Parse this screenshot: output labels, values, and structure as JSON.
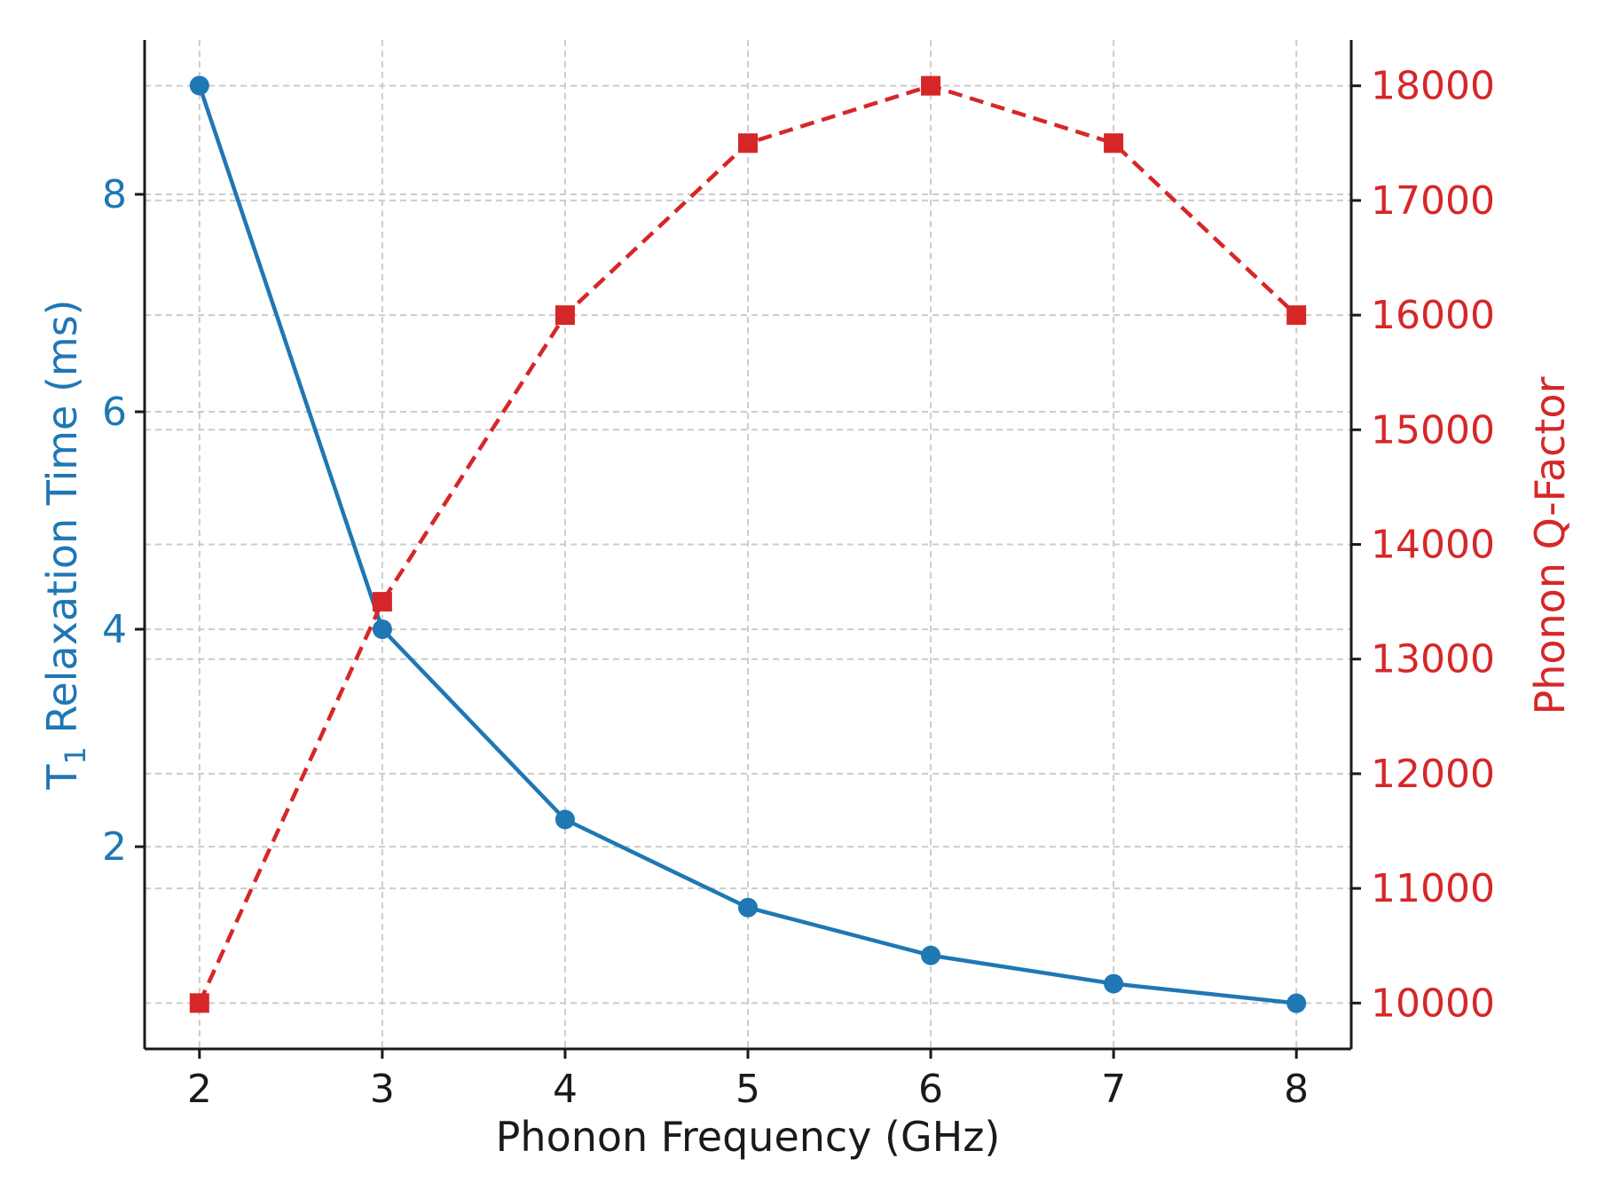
{
  "chart_data": {
    "type": "line",
    "x": [
      2,
      3,
      4,
      5,
      6,
      7,
      8
    ],
    "xlabel": "Phonon Frequency (GHz)",
    "xticks": [
      "2",
      "3",
      "4",
      "5",
      "6",
      "7",
      "8"
    ],
    "xlim": [
      1.7,
      8.3
    ],
    "grid": true,
    "series": [
      {
        "name": "T1 Relaxation Time",
        "axis": "left",
        "color": "#1f77b4",
        "marker": "circle",
        "linestyle": "solid",
        "values": [
          9.0,
          4.0,
          2.25,
          1.44,
          1.0,
          0.74,
          0.56
        ]
      },
      {
        "name": "Phonon Q-Factor",
        "axis": "right",
        "color": "#d62728",
        "marker": "square",
        "linestyle": "dashed",
        "values": [
          10000,
          13500,
          16000,
          17500,
          18000,
          17500,
          16000
        ]
      }
    ],
    "y_left": {
      "label_main": "T",
      "label_sub": "1",
      "label_rest": " Relaxation Time (ms)",
      "ticks": [
        "2",
        "4",
        "6",
        "8"
      ],
      "tick_values": [
        2,
        4,
        6,
        8
      ],
      "lim": [
        0.14,
        9.42
      ],
      "color": "#1f77b4"
    },
    "y_right": {
      "label": "Phonon Q-Factor",
      "ticks": [
        "10000",
        "11000",
        "12000",
        "13000",
        "14000",
        "15000",
        "16000",
        "17000",
        "18000"
      ],
      "tick_values": [
        10000,
        11000,
        12000,
        13000,
        14000,
        15000,
        16000,
        17000,
        18000
      ],
      "lim": [
        9600,
        18400
      ],
      "color": "#d62728"
    }
  }
}
